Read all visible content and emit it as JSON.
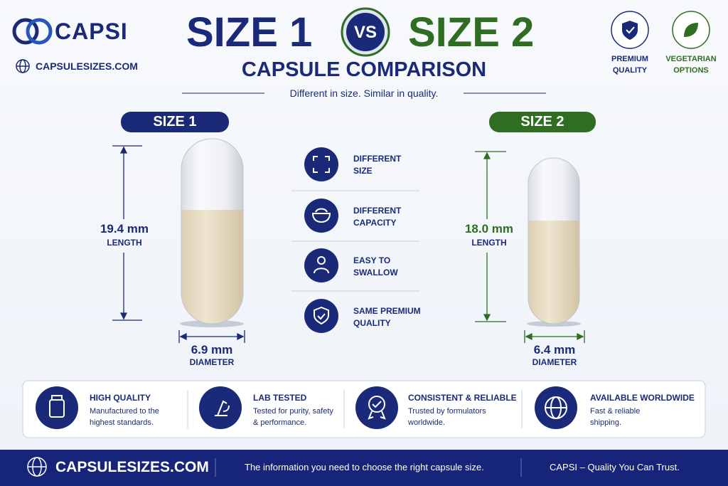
{
  "brand": {
    "name": "CAPSI",
    "website": "CAPSULESIZES.COM"
  },
  "header": {
    "left_title": "SIZE 1",
    "vs": "VS",
    "right_title": "SIZE 2",
    "subtitle": "CAPSULE COMPARISON",
    "tagline": "Different in size. Similar in quality."
  },
  "badges": [
    {
      "label": "PREMIUM QUALITY"
    },
    {
      "label": "VEGETARIAN OPTIONS"
    }
  ],
  "capsules": [
    {
      "label": "SIZE 1",
      "length": "19.4 mm",
      "length_caption": "LENGTH",
      "diameter": "6.9 mm",
      "diameter_caption": "DIAMETER"
    },
    {
      "label": "SIZE 2",
      "length": "18.0 mm",
      "length_caption": "LENGTH",
      "diameter": "6.4 mm",
      "diameter_caption": "DIAMETER"
    }
  ],
  "features": [
    "DIFFERENT SIZE",
    "DIFFERENT CAPACITY",
    "EASY TO SWALLOW",
    "SAME PREMIUM QUALITY"
  ],
  "benefits": [
    {
      "title": "HIGH QUALITY",
      "text": "Manufactured to the highest standards."
    },
    {
      "title": "LAB TESTED",
      "text": "Tested for purity, safety & performance."
    },
    {
      "title": "CONSISTENT & RELIABLE",
      "text": "Trusted by formulators worldwide."
    },
    {
      "title": "AVAILABLE WORLDWIDE",
      "text": "Fast & reliable shipping."
    }
  ],
  "footer": {
    "website": "CAPSULESIZES.COM",
    "message": "The information you need to choose the right capsule size.",
    "slogan": "CAPSI – Quality You Can Trust."
  }
}
